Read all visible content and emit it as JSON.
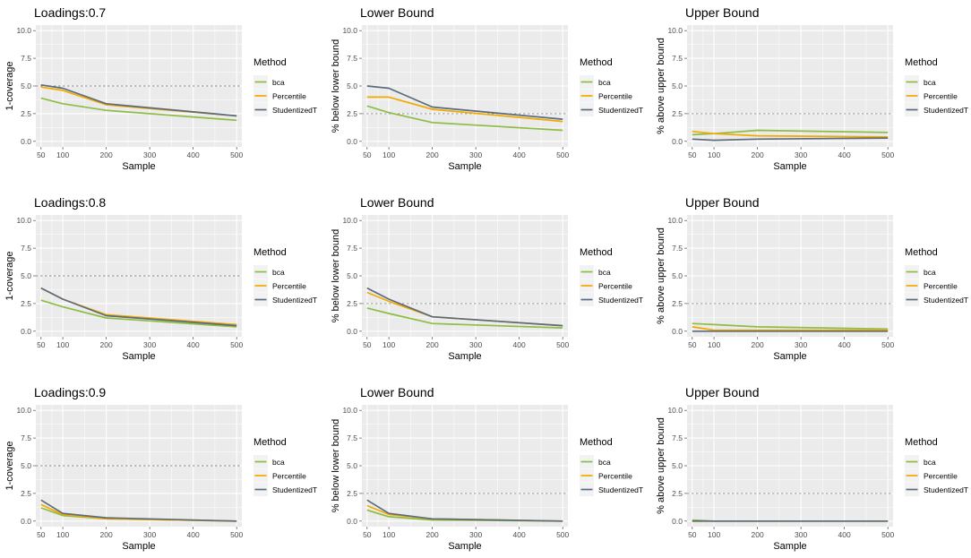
{
  "colors": {
    "bca": "#8fbc44",
    "Percentile": "#f2a900",
    "StudentizedT": "#5a6b7d",
    "panel_bg": "#ebebeb",
    "grid": "#ffffff",
    "ref_line": "#8c8c8c"
  },
  "legend": {
    "title": "Method",
    "entries": [
      "bca",
      "Percentile",
      "StudentizedT"
    ]
  },
  "chart_data": [
    {
      "type": "line",
      "title": "Loadings:0.7",
      "xlabel": "Sample",
      "ylabel": "1-coverage",
      "x": [
        50,
        100,
        200,
        500
      ],
      "xticks": [
        "50",
        "100",
        "200",
        "300",
        "400",
        "500"
      ],
      "xlim": [
        38,
        512
      ],
      "ylim": [
        -0.5,
        10.5
      ],
      "yticks": [
        "0.0",
        "2.5",
        "5.0",
        "7.5",
        "10.0"
      ],
      "ref": 5.0,
      "series": [
        {
          "name": "bca",
          "values": [
            3.9,
            3.4,
            2.8,
            1.9
          ]
        },
        {
          "name": "Percentile",
          "values": [
            4.9,
            4.6,
            3.3,
            2.3
          ]
        },
        {
          "name": "StudentizedT",
          "values": [
            5.1,
            4.8,
            3.4,
            2.3
          ]
        }
      ]
    },
    {
      "type": "line",
      "title": "Lower Bound",
      "xlabel": "Sample",
      "ylabel": "% below lower bound",
      "x": [
        50,
        100,
        200,
        500
      ],
      "xticks": [
        "50",
        "100",
        "200",
        "300",
        "400",
        "500"
      ],
      "xlim": [
        38,
        512
      ],
      "ylim": [
        -0.5,
        10.5
      ],
      "yticks": [
        "0.0",
        "2.5",
        "5.0",
        "7.5",
        "10.0"
      ],
      "ref": 2.5,
      "series": [
        {
          "name": "bca",
          "values": [
            3.2,
            2.6,
            1.7,
            1.0
          ]
        },
        {
          "name": "Percentile",
          "values": [
            4.0,
            4.0,
            2.9,
            1.8
          ]
        },
        {
          "name": "StudentizedT",
          "values": [
            5.0,
            4.8,
            3.1,
            2.0
          ]
        }
      ]
    },
    {
      "type": "line",
      "title": "Upper Bound",
      "xlabel": "Sample",
      "ylabel": "% above upper bound",
      "x": [
        50,
        100,
        200,
        500
      ],
      "xticks": [
        "50",
        "100",
        "200",
        "300",
        "400",
        "500"
      ],
      "xlim": [
        38,
        512
      ],
      "ylim": [
        -0.5,
        10.5
      ],
      "yticks": [
        "0.0",
        "2.5",
        "5.0",
        "7.5",
        "10.0"
      ],
      "ref": 2.5,
      "series": [
        {
          "name": "bca",
          "values": [
            0.6,
            0.7,
            1.0,
            0.8
          ]
        },
        {
          "name": "Percentile",
          "values": [
            0.9,
            0.7,
            0.5,
            0.4
          ]
        },
        {
          "name": "StudentizedT",
          "values": [
            0.2,
            0.1,
            0.2,
            0.3
          ]
        }
      ]
    },
    {
      "type": "line",
      "title": "Loadings:0.8",
      "xlabel": "Sample",
      "ylabel": "1-coverage",
      "x": [
        50,
        100,
        200,
        500
      ],
      "xticks": [
        "50",
        "100",
        "200",
        "300",
        "400",
        "500"
      ],
      "xlim": [
        38,
        512
      ],
      "ylim": [
        -0.5,
        10.5
      ],
      "yticks": [
        "0.0",
        "2.5",
        "5.0",
        "7.5",
        "10.0"
      ],
      "ref": 5.0,
      "series": [
        {
          "name": "bca",
          "values": [
            2.8,
            2.2,
            1.2,
            0.4
          ]
        },
        {
          "name": "Percentile",
          "values": [
            3.9,
            2.9,
            1.5,
            0.6
          ]
        },
        {
          "name": "StudentizedT",
          "values": [
            3.9,
            2.9,
            1.4,
            0.5
          ]
        }
      ]
    },
    {
      "type": "line",
      "title": "Lower Bound",
      "xlabel": "Sample",
      "ylabel": "% below lower bound",
      "x": [
        50,
        100,
        200,
        500
      ],
      "xticks": [
        "50",
        "100",
        "200",
        "300",
        "400",
        "500"
      ],
      "xlim": [
        38,
        512
      ],
      "ylim": [
        -0.5,
        10.5
      ],
      "yticks": [
        "0.0",
        "2.5",
        "5.0",
        "7.5",
        "10.0"
      ],
      "ref": 2.5,
      "series": [
        {
          "name": "bca",
          "values": [
            2.1,
            1.6,
            0.7,
            0.3
          ]
        },
        {
          "name": "Percentile",
          "values": [
            3.5,
            2.7,
            1.3,
            0.5
          ]
        },
        {
          "name": "StudentizedT",
          "values": [
            3.9,
            2.9,
            1.3,
            0.5
          ]
        }
      ]
    },
    {
      "type": "line",
      "title": "Upper Bound",
      "xlabel": "Sample",
      "ylabel": "% above upper bound",
      "x": [
        50,
        100,
        200,
        500
      ],
      "xticks": [
        "50",
        "100",
        "200",
        "300",
        "400",
        "500"
      ],
      "xlim": [
        38,
        512
      ],
      "ylim": [
        -0.5,
        10.5
      ],
      "yticks": [
        "0.0",
        "2.5",
        "5.0",
        "7.5",
        "10.0"
      ],
      "ref": 2.5,
      "series": [
        {
          "name": "bca",
          "values": [
            0.7,
            0.6,
            0.4,
            0.2
          ]
        },
        {
          "name": "Percentile",
          "values": [
            0.4,
            0.1,
            0.1,
            0.1
          ]
        },
        {
          "name": "StudentizedT",
          "values": [
            0.0,
            0.0,
            0.0,
            0.0
          ]
        }
      ]
    },
    {
      "type": "line",
      "title": "Loadings:0.9",
      "xlabel": "Sample",
      "ylabel": "1-coverage",
      "x": [
        50,
        100,
        200,
        500
      ],
      "xticks": [
        "50",
        "100",
        "200",
        "300",
        "400",
        "500"
      ],
      "xlim": [
        38,
        512
      ],
      "ylim": [
        -0.5,
        10.5
      ],
      "yticks": [
        "0.0",
        "2.5",
        "5.0",
        "7.5",
        "10.0"
      ],
      "ref": 5.0,
      "series": [
        {
          "name": "bca",
          "values": [
            1.2,
            0.5,
            0.2,
            0.0
          ]
        },
        {
          "name": "Percentile",
          "values": [
            1.5,
            0.6,
            0.2,
            0.0
          ]
        },
        {
          "name": "StudentizedT",
          "values": [
            1.9,
            0.7,
            0.3,
            0.0
          ]
        }
      ]
    },
    {
      "type": "line",
      "title": "Lower Bound",
      "xlabel": "Sample",
      "ylabel": "% below lower bound",
      "x": [
        50,
        100,
        200,
        500
      ],
      "xticks": [
        "50",
        "100",
        "200",
        "300",
        "400",
        "500"
      ],
      "xlim": [
        38,
        512
      ],
      "ylim": [
        -0.5,
        10.5
      ],
      "yticks": [
        "0.0",
        "2.5",
        "5.0",
        "7.5",
        "10.0"
      ],
      "ref": 2.5,
      "series": [
        {
          "name": "bca",
          "values": [
            1.0,
            0.4,
            0.1,
            0.0
          ]
        },
        {
          "name": "Percentile",
          "values": [
            1.4,
            0.6,
            0.2,
            0.0
          ]
        },
        {
          "name": "StudentizedT",
          "values": [
            1.9,
            0.7,
            0.2,
            0.0
          ]
        }
      ]
    },
    {
      "type": "line",
      "title": "Upper Bound",
      "xlabel": "Sample",
      "ylabel": "% above upper bound",
      "x": [
        50,
        100,
        200,
        500
      ],
      "xticks": [
        "50",
        "100",
        "200",
        "300",
        "400",
        "500"
      ],
      "xlim": [
        38,
        512
      ],
      "ylim": [
        -0.5,
        10.5
      ],
      "yticks": [
        "0.0",
        "2.5",
        "5.0",
        "7.5",
        "10.0"
      ],
      "ref": 2.5,
      "series": [
        {
          "name": "bca",
          "values": [
            0.1,
            0.0,
            0.0,
            0.0
          ]
        },
        {
          "name": "Percentile",
          "values": [
            0.0,
            0.0,
            0.0,
            0.0
          ]
        },
        {
          "name": "StudentizedT",
          "values": [
            0.0,
            0.0,
            0.0,
            0.0
          ]
        }
      ]
    }
  ]
}
